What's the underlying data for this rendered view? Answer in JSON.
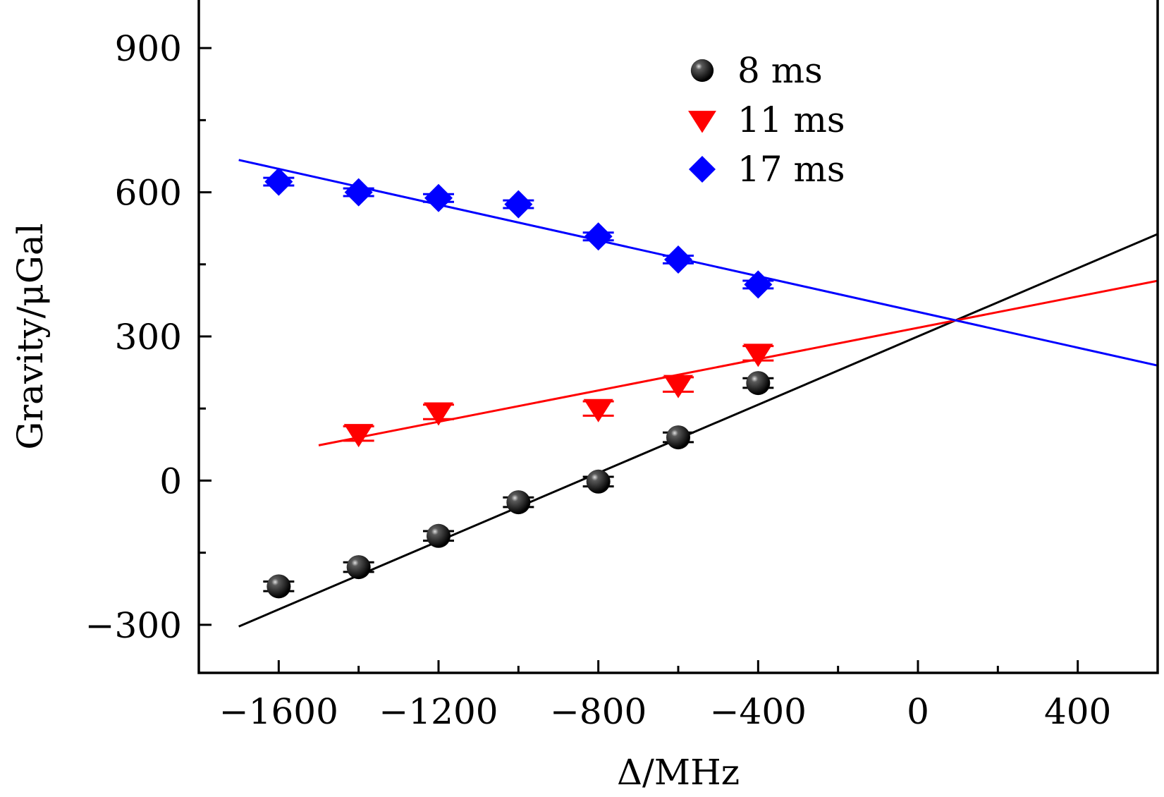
{
  "chart_data": {
    "type": "scatter",
    "xlabel": "Δ/MHz",
    "ylabel": "Gravity/μGal",
    "xlim": [
      -1800,
      600
    ],
    "ylim": [
      -400,
      1000
    ],
    "x_ticks": [
      -1600,
      -1200,
      -800,
      -400,
      0,
      400
    ],
    "x_tick_labels": [
      "−1600",
      "−1200",
      "−800",
      "−400",
      "0",
      "400"
    ],
    "x_minor_ticks": [
      -1400,
      -1000,
      -600,
      -200,
      200
    ],
    "y_ticks": [
      -300,
      0,
      300,
      600,
      900
    ],
    "y_tick_labels": [
      "−300",
      "0",
      "300",
      "600",
      "900"
    ],
    "y_minor_ticks": [
      -150,
      150,
      450,
      750
    ],
    "legend_position": "top-center",
    "series": [
      {
        "name": "8 ms",
        "marker": "sphere",
        "color": "#000000",
        "x": [
          -1600,
          -1400,
          -1200,
          -1000,
          -800,
          -600,
          -400
        ],
        "y": [
          -220,
          -180,
          -115,
          -45,
          -2,
          90,
          203
        ],
        "error": [
          10,
          10,
          10,
          10,
          10,
          10,
          10
        ],
        "fit": {
          "x_start": -1700,
          "x_end": 600,
          "slope": 0.355,
          "intercept": 300
        }
      },
      {
        "name": "11 ms",
        "marker": "triangle-down",
        "color": "#ff0000",
        "x": [
          -1400,
          -1200,
          -800,
          -600,
          -400
        ],
        "y": [
          98,
          143,
          150,
          200,
          265
        ],
        "error": [
          15,
          15,
          15,
          15,
          15
        ],
        "fit": {
          "x_start": -1500,
          "x_end": 600,
          "slope": 0.163,
          "intercept": 318
        }
      },
      {
        "name": "17 ms",
        "marker": "diamond",
        "color": "#0000ff",
        "x": [
          -1600,
          -1400,
          -1200,
          -1000,
          -800,
          -600,
          -400
        ],
        "y": [
          622,
          600,
          588,
          575,
          508,
          460,
          408
        ],
        "error": [
          8,
          8,
          8,
          8,
          8,
          8,
          8
        ],
        "fit": {
          "x_start": -1700,
          "x_end": 600,
          "slope": -0.186,
          "intercept": 351
        }
      }
    ]
  }
}
